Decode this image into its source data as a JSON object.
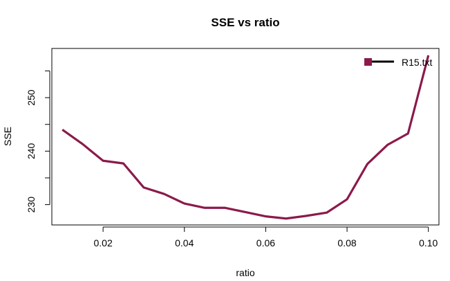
{
  "chart_data": {
    "type": "line",
    "title": "SSE vs ratio",
    "xlabel": "ratio",
    "ylabel": "SSE",
    "xlim": [
      0.0074,
      0.1026
    ],
    "ylim": [
      226.2,
      259.2
    ],
    "x_ticks": [
      "0.02",
      "0.04",
      "0.06",
      "0.08",
      "0.10"
    ],
    "y_ticks": [
      "230",
      "240",
      "250"
    ],
    "grid": false,
    "legend_position": "top-right",
    "series": [
      {
        "name": "R15.txt",
        "color": "#8B1A4B",
        "x": [
          0.01,
          0.015,
          0.02,
          0.025,
          0.03,
          0.035,
          0.04,
          0.045,
          0.05,
          0.055,
          0.06,
          0.065,
          0.07,
          0.075,
          0.08,
          0.085,
          0.09,
          0.095,
          0.1
        ],
        "y": [
          244.0,
          241.3,
          238.2,
          237.7,
          233.2,
          232.0,
          230.2,
          229.4,
          229.4,
          228.6,
          227.8,
          227.4,
          227.9,
          228.5,
          231.0,
          237.6,
          241.2,
          243.3,
          257.9
        ]
      }
    ]
  }
}
